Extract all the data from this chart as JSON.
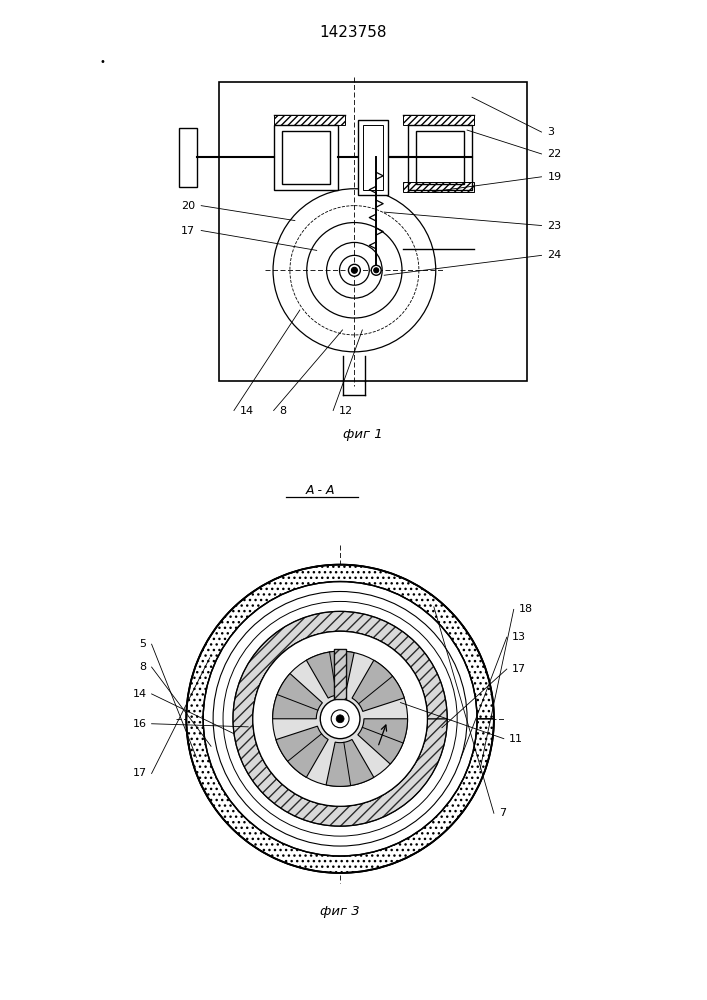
{
  "title": "1423758",
  "fig1_caption": "фиг 1",
  "fig2_caption": "фиг 3",
  "section_label": "A - A",
  "bg_color": "#ffffff",
  "line_color": "#000000"
}
